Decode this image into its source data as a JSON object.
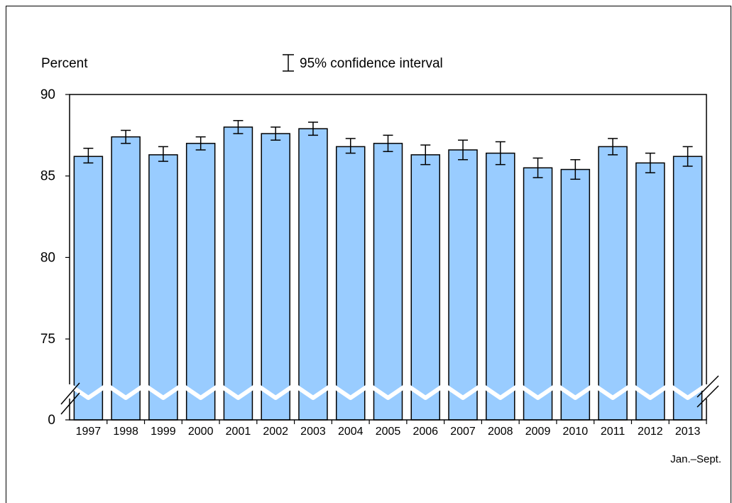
{
  "chart_data": {
    "type": "bar",
    "ylabel": "Percent",
    "legend": {
      "label": "95% confidence interval",
      "placement": "top-center"
    },
    "note": "Jan.–Sept.",
    "categories": [
      "1997",
      "1998",
      "1999",
      "2000",
      "2001",
      "2002",
      "2003",
      "2004",
      "2005",
      "2006",
      "2007",
      "2008",
      "2009",
      "2010",
      "2011",
      "2012",
      "2013"
    ],
    "values": [
      86.2,
      87.4,
      86.3,
      87.0,
      88.0,
      87.6,
      87.9,
      86.8,
      87.0,
      86.3,
      86.6,
      86.4,
      85.5,
      85.4,
      86.8,
      85.8,
      86.2
    ],
    "ci_lower": [
      85.8,
      87.0,
      85.9,
      86.6,
      87.6,
      87.2,
      87.5,
      86.4,
      86.5,
      85.7,
      86.0,
      85.7,
      84.9,
      84.8,
      86.3,
      85.2,
      85.6
    ],
    "ci_upper": [
      86.7,
      87.8,
      86.8,
      87.4,
      88.4,
      88.0,
      88.3,
      87.3,
      87.5,
      86.9,
      87.2,
      87.1,
      86.1,
      86.0,
      87.3,
      86.4,
      86.8
    ],
    "ylim": [
      72,
      90
    ],
    "yticks": [
      "90",
      "85",
      "80",
      "75",
      "0"
    ],
    "y_axis_break": true,
    "colors": {
      "bar_fill": "#99ccff",
      "bar_stroke": "#000000"
    }
  }
}
